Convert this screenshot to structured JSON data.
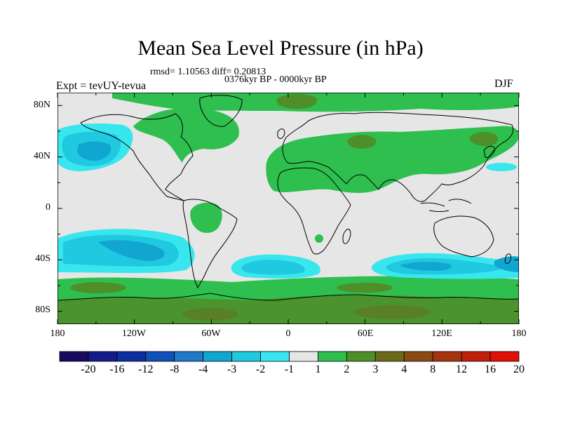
{
  "title": "Mean Sea Level Pressure (in hPa)",
  "stats_line": "rmsd= 1.10563 diff= 0.20813",
  "period_line": "0376kyr BP - 0000kyr BP",
  "experiment_label": "Expt = tevUY-tevua",
  "season": "DJF",
  "lat_ticks": [
    "80N",
    "40N",
    "0",
    "40S",
    "80S"
  ],
  "lon_ticks": [
    "180",
    "120W",
    "60W",
    "0",
    "60E",
    "120E",
    "180"
  ],
  "colorbar": {
    "labels": [
      "-20",
      "-16",
      "-12",
      "-8",
      "-4",
      "-3",
      "-2",
      "-1",
      "1",
      "2",
      "3",
      "4",
      "8",
      "12",
      "16",
      "20"
    ],
    "colors": [
      "#1a0a5e",
      "#141a8a",
      "#0d2f9e",
      "#1050b8",
      "#1f78c8",
      "#11a6d0",
      "#20c8e0",
      "#38e6ee",
      "#e6e6e6",
      "#2fbf4f",
      "#4e8f2a",
      "#6a6a1a",
      "#8a4a12",
      "#a5350e",
      "#c0200a",
      "#e01008"
    ]
  },
  "chart_data": {
    "type": "heatmap",
    "title": "Mean Sea Level Pressure (in hPa)",
    "subtitle": "0376kyr BP - 0000kyr BP",
    "variable": "Mean Sea Level Pressure anomaly (hPa)",
    "season": "DJF",
    "rmsd": 1.10563,
    "diff": 0.20813,
    "x_range_deg": [
      -180,
      180
    ],
    "y_range_deg": [
      -90,
      90
    ],
    "contour_levels": [
      -20,
      -16,
      -12,
      -8,
      -4,
      -3,
      -2,
      -1,
      1,
      2,
      3,
      4,
      8,
      12,
      16,
      20
    ],
    "features": [
      {
        "region": "North Pacific",
        "range_hPa": "-1 to -3"
      },
      {
        "region": "Southern Ocean (Pacific, Atlantic, Indian sectors)",
        "range_hPa": "-1 to -3"
      },
      {
        "region": "Antarctica and surrounding ring",
        "range_hPa": "2 to 4"
      },
      {
        "region": "Eurasia / North Africa",
        "range_hPa": "1 to 3"
      },
      {
        "region": "North Atlantic / Greenland",
        "range_hPa": "1 to 3"
      },
      {
        "region": "Arctic Ocean",
        "range_hPa": "2 to 3"
      }
    ]
  }
}
